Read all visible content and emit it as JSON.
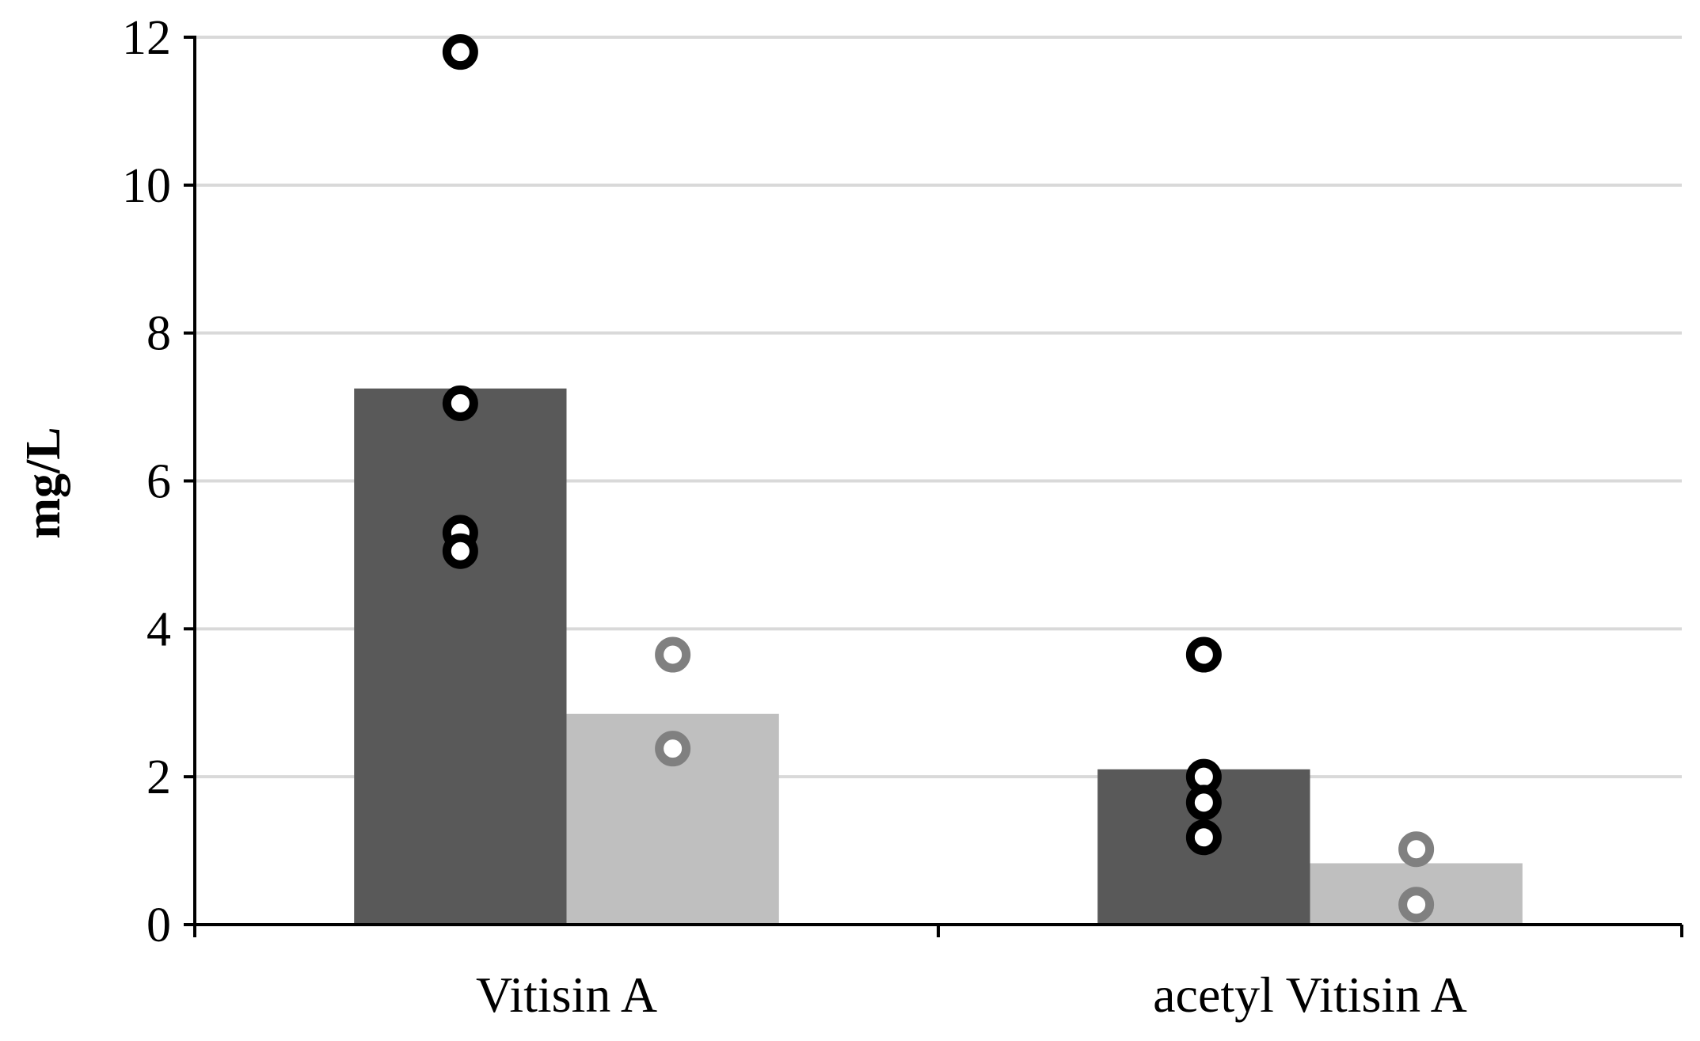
{
  "chart_data": {
    "type": "bar",
    "title": "",
    "xlabel": "",
    "ylabel": "mg/L",
    "ylim": [
      0,
      12
    ],
    "yticks": [
      0,
      2,
      4,
      6,
      8,
      10,
      12
    ],
    "categories": [
      "Vitisin A",
      "acetyl Vitisin A"
    ],
    "series": [
      {
        "color": "#595959",
        "marker_color": "#000000",
        "values": [
          7.25,
          2.1
        ],
        "points": [
          [
            11.8,
            7.05,
            5.3,
            5.05
          ],
          [
            3.65,
            2.0,
            1.65,
            1.18
          ]
        ]
      },
      {
        "color": "#bfbfbf",
        "marker_color": "#808080",
        "values": [
          2.85,
          0.83
        ],
        "points": [
          [
            3.65,
            2.38
          ],
          [
            1.02,
            0.27
          ]
        ]
      }
    ],
    "grid": true,
    "legend": "none"
  }
}
